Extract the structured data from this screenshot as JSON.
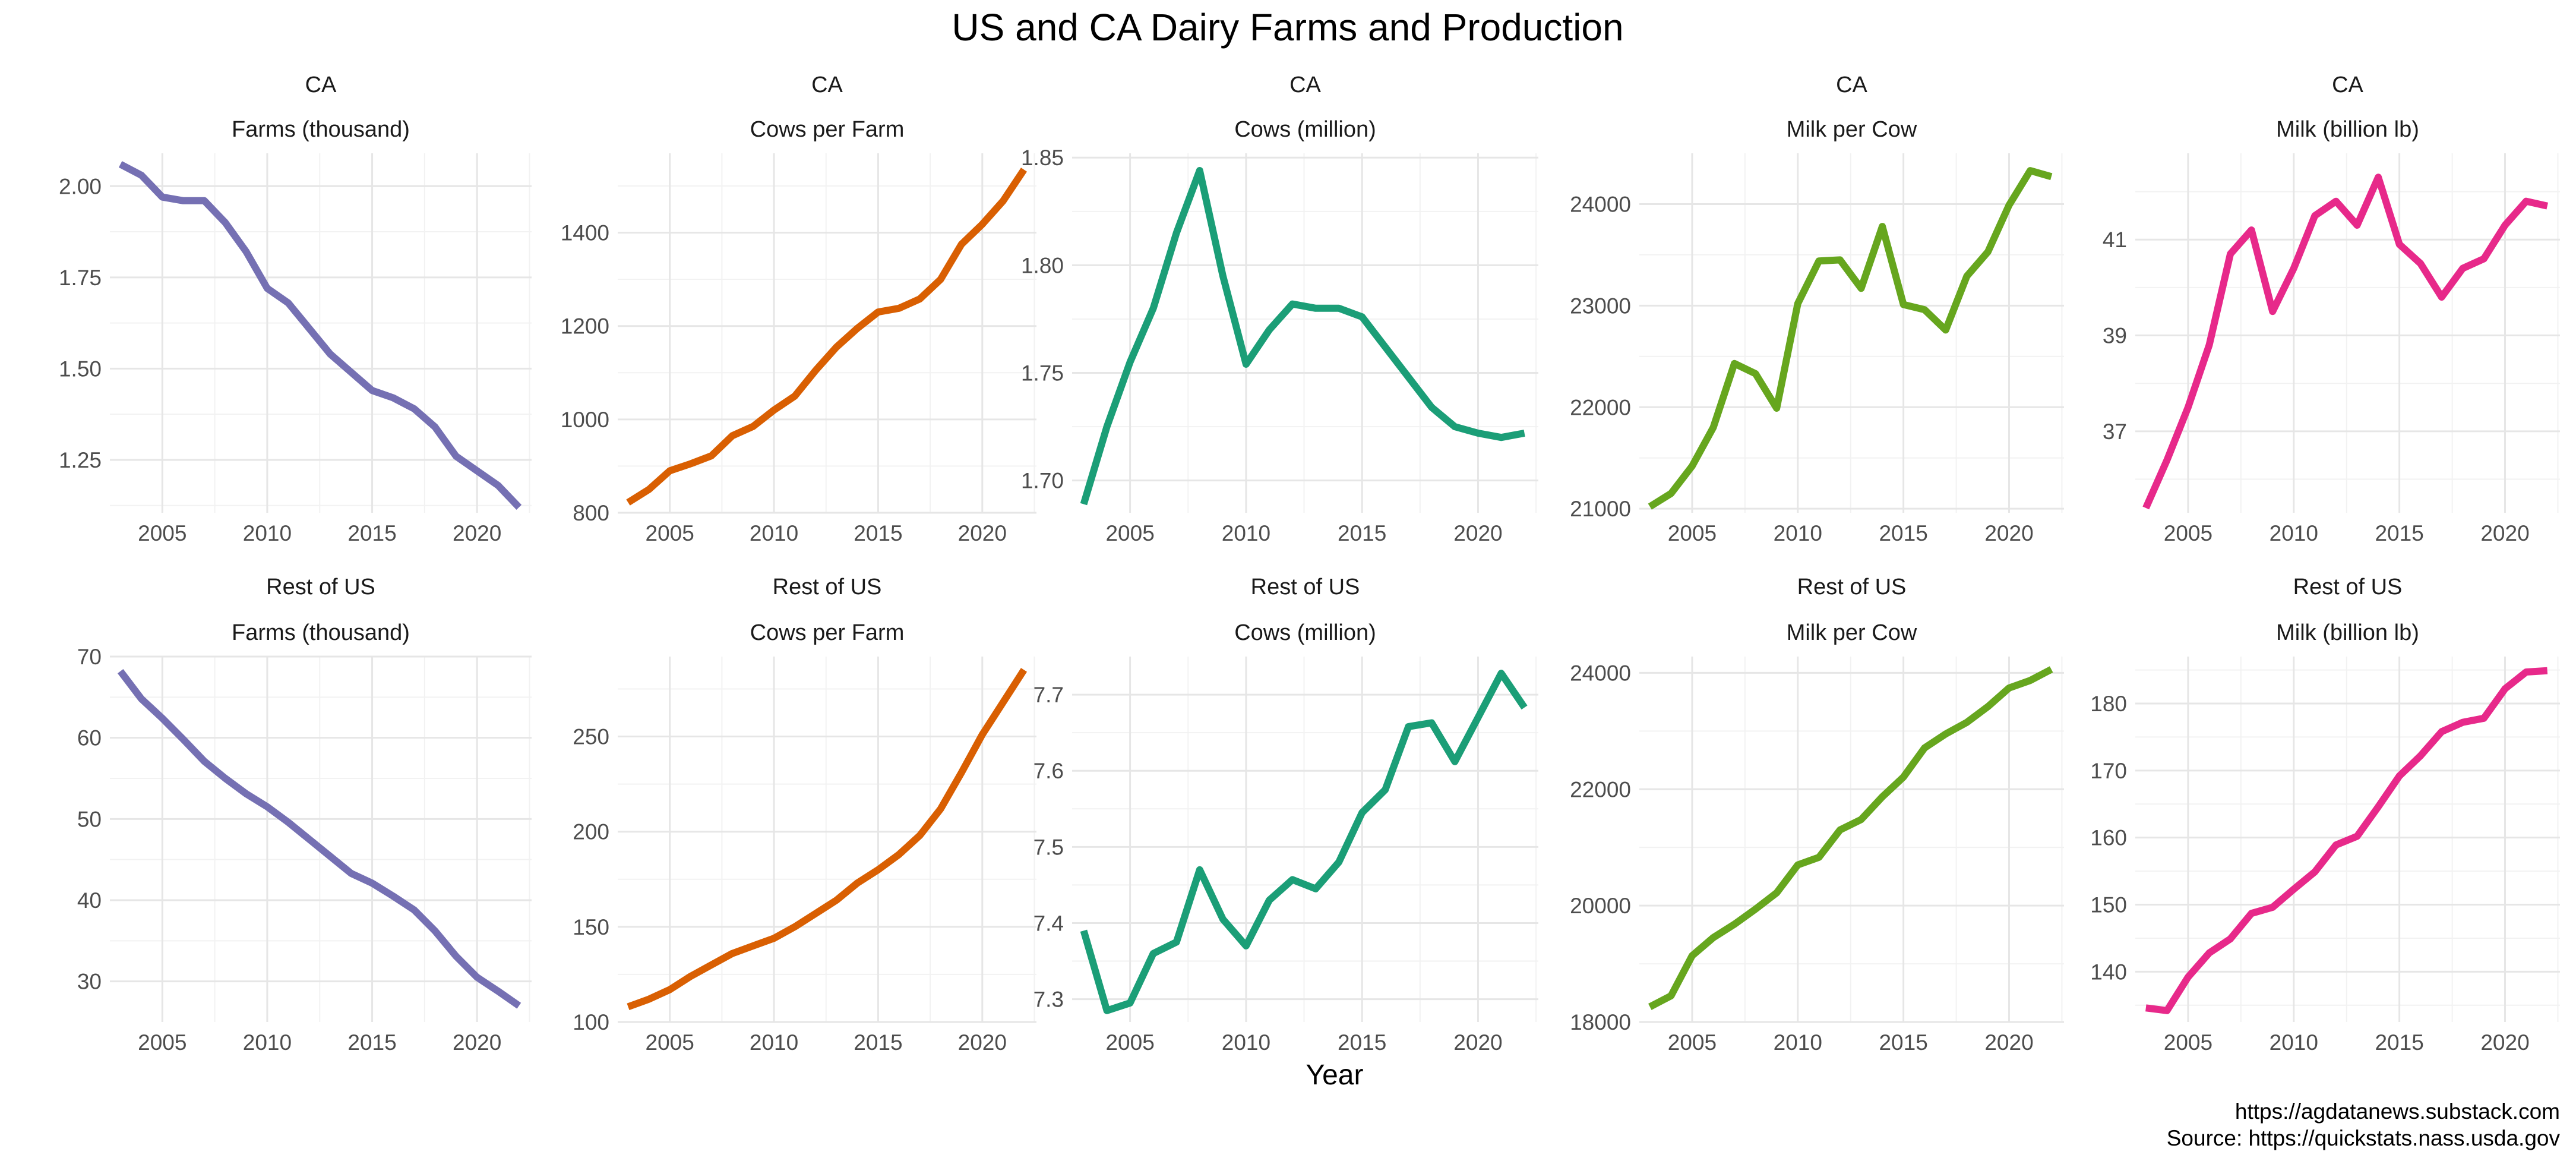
{
  "title": "US and CA Dairy Farms and Production",
  "x_axis_label": "Year",
  "caption": [
    "https://agdatanews.substack.com",
    "Source: https://quickstats.nass.usda.gov"
  ],
  "chart_data": [
    {
      "type": "line",
      "region": "CA",
      "title": "Farms (thousand)",
      "color": "#7570b3",
      "x": [
        2003,
        2004,
        2005,
        2006,
        2007,
        2008,
        2009,
        2010,
        2011,
        2012,
        2013,
        2014,
        2015,
        2016,
        2017,
        2018,
        2019,
        2020,
        2021,
        2022
      ],
      "values": [
        2.06,
        2.03,
        1.97,
        1.96,
        1.96,
        1.9,
        1.82,
        1.72,
        1.68,
        1.61,
        1.54,
        1.49,
        1.44,
        1.42,
        1.39,
        1.34,
        1.26,
        1.22,
        1.18,
        1.12
      ],
      "xlim": [
        2002.5,
        2022.6
      ],
      "xticks": [
        2005,
        2010,
        2015,
        2020
      ],
      "ylim": [
        1.105,
        2.09
      ],
      "yticks": [
        1.25,
        1.5,
        1.75,
        2.0
      ],
      "ytick_labels": [
        "1.25",
        "1.50",
        "1.75",
        "2.00"
      ]
    },
    {
      "type": "line",
      "region": "CA",
      "title": "Cows per Farm",
      "color": "#d95f02",
      "x": [
        2003,
        2004,
        2005,
        2006,
        2007,
        2008,
        2009,
        2010,
        2011,
        2012,
        2013,
        2014,
        2015,
        2016,
        2017,
        2018,
        2019,
        2020,
        2021,
        2022
      ],
      "values": [
        822,
        850,
        890,
        905,
        922,
        965,
        985,
        1020,
        1050,
        1105,
        1155,
        1195,
        1230,
        1238,
        1258,
        1300,
        1375,
        1418,
        1468,
        1535
      ],
      "xlim": [
        2002.5,
        2022.6
      ],
      "xticks": [
        2005,
        2010,
        2015,
        2020
      ],
      "ylim": [
        800,
        1570
      ],
      "yticks": [
        800,
        1000,
        1200,
        1400
      ],
      "ytick_labels": [
        "800",
        "1000",
        "1200",
        "1400"
      ]
    },
    {
      "type": "line",
      "region": "CA",
      "title": "Cows (million)",
      "color": "#1b9e77",
      "x": [
        2003,
        2004,
        2005,
        2006,
        2007,
        2008,
        2009,
        2010,
        2011,
        2012,
        2013,
        2014,
        2015,
        2016,
        2017,
        2018,
        2019,
        2020,
        2021,
        2022
      ],
      "values": [
        1.689,
        1.725,
        1.755,
        1.78,
        1.815,
        1.844,
        1.795,
        1.754,
        1.77,
        1.782,
        1.78,
        1.78,
        1.776,
        1.762,
        1.748,
        1.734,
        1.725,
        1.722,
        1.72,
        1.722
      ],
      "xlim": [
        2002.5,
        2022.6
      ],
      "xticks": [
        2005,
        2010,
        2015,
        2020
      ],
      "ylim": [
        1.685,
        1.852
      ],
      "yticks": [
        1.7,
        1.75,
        1.8,
        1.85
      ],
      "ytick_labels": [
        "1.70",
        "1.75",
        "1.80",
        "1.85"
      ]
    },
    {
      "type": "line",
      "region": "CA",
      "title": "Milk per Cow",
      "color": "#66a61e",
      "x": [
        2003,
        2004,
        2005,
        2006,
        2007,
        2008,
        2009,
        2010,
        2011,
        2012,
        2013,
        2014,
        2015,
        2016,
        2017,
        2018,
        2019,
        2020,
        2021,
        2022
      ],
      "values": [
        21020,
        21150,
        21420,
        21800,
        22430,
        22330,
        21990,
        23020,
        23440,
        23450,
        23170,
        23780,
        23010,
        22960,
        22760,
        23290,
        23530,
        23990,
        24330,
        24270
      ],
      "xlim": [
        2002.5,
        2022.6
      ],
      "xticks": [
        2005,
        2010,
        2015,
        2020
      ],
      "ylim": [
        20960,
        24500
      ],
      "yticks": [
        21000,
        22000,
        23000,
        24000
      ],
      "ytick_labels": [
        "21000",
        "22000",
        "23000",
        "24000"
      ]
    },
    {
      "type": "line",
      "region": "CA",
      "title": "Milk (billion lb)",
      "color": "#e7298a",
      "x": [
        2003,
        2004,
        2005,
        2006,
        2007,
        2008,
        2009,
        2010,
        2011,
        2012,
        2013,
        2014,
        2015,
        2016,
        2017,
        2018,
        2019,
        2020,
        2021,
        2022
      ],
      "values": [
        35.4,
        36.4,
        37.5,
        38.8,
        40.7,
        41.2,
        39.5,
        40.4,
        41.5,
        41.8,
        41.3,
        42.3,
        40.9,
        40.5,
        39.8,
        40.4,
        40.6,
        41.3,
        41.8,
        41.7
      ],
      "xlim": [
        2002.5,
        2022.6
      ],
      "xticks": [
        2005,
        2010,
        2015,
        2020
      ],
      "ylim": [
        35.3,
        42.8
      ],
      "yticks": [
        37,
        39,
        41
      ],
      "ytick_labels": [
        "37",
        "39",
        "41"
      ]
    },
    {
      "type": "line",
      "region": "Rest of US",
      "title": "Farms (thousand)",
      "color": "#7570b3",
      "x": [
        2003,
        2004,
        2005,
        2006,
        2007,
        2008,
        2009,
        2010,
        2011,
        2012,
        2013,
        2014,
        2015,
        2016,
        2017,
        2018,
        2019,
        2020,
        2021,
        2022
      ],
      "values": [
        68.2,
        64.8,
        62.4,
        59.8,
        57.1,
        55.0,
        53.1,
        51.5,
        49.6,
        47.5,
        45.4,
        43.3,
        42.1,
        40.5,
        38.8,
        36.2,
        33.1,
        30.5,
        28.8,
        27.0
      ],
      "xlim": [
        2002.5,
        2022.6
      ],
      "xticks": [
        2005,
        2010,
        2015,
        2020
      ],
      "ylim": [
        25,
        70
      ],
      "yticks": [
        30,
        40,
        50,
        60,
        70
      ],
      "ytick_labels": [
        "30",
        "40",
        "50",
        "60",
        "70"
      ]
    },
    {
      "type": "line",
      "region": "Rest of US",
      "title": "Cows per Farm",
      "color": "#d95f02",
      "x": [
        2003,
        2004,
        2005,
        2006,
        2007,
        2008,
        2009,
        2010,
        2011,
        2012,
        2013,
        2014,
        2015,
        2016,
        2017,
        2018,
        2019,
        2020,
        2021,
        2022
      ],
      "values": [
        108,
        112,
        117,
        124,
        130,
        136,
        140,
        144,
        150,
        157,
        164,
        173,
        180,
        188,
        198,
        212,
        231,
        251,
        268,
        285
      ],
      "xlim": [
        2002.5,
        2022.6
      ],
      "xticks": [
        2005,
        2010,
        2015,
        2020
      ],
      "ylim": [
        100,
        292
      ],
      "yticks": [
        100,
        150,
        200,
        250
      ],
      "ytick_labels": [
        "100",
        "150",
        "200",
        "250"
      ]
    },
    {
      "type": "line",
      "region": "Rest of US",
      "title": "Cows (million)",
      "color": "#1b9e77",
      "x": [
        2003,
        2004,
        2005,
        2006,
        2007,
        2008,
        2009,
        2010,
        2011,
        2012,
        2013,
        2014,
        2015,
        2016,
        2017,
        2018,
        2019,
        2020,
        2021,
        2022
      ],
      "values": [
        7.39,
        7.285,
        7.295,
        7.36,
        7.375,
        7.47,
        7.405,
        7.37,
        7.43,
        7.457,
        7.445,
        7.48,
        7.545,
        7.575,
        7.658,
        7.663,
        7.612,
        7.67,
        7.728,
        7.683
      ],
      "xlim": [
        2002.5,
        2022.6
      ],
      "xticks": [
        2005,
        2010,
        2015,
        2020
      ],
      "ylim": [
        7.27,
        7.75
      ],
      "yticks": [
        7.3,
        7.4,
        7.5,
        7.6,
        7.7
      ],
      "ytick_labels": [
        "7.3",
        "7.4",
        "7.5",
        "7.6",
        "7.7"
      ]
    },
    {
      "type": "line",
      "region": "Rest of US",
      "title": "Milk per Cow",
      "color": "#66a61e",
      "x": [
        2003,
        2004,
        2005,
        2006,
        2007,
        2008,
        2009,
        2010,
        2011,
        2012,
        2013,
        2014,
        2015,
        2016,
        2017,
        2018,
        2019,
        2020,
        2021,
        2022
      ],
      "values": [
        18260,
        18450,
        19140,
        19450,
        19680,
        19940,
        20220,
        20700,
        20830,
        21300,
        21480,
        21870,
        22210,
        22710,
        22950,
        23150,
        23420,
        23740,
        23870,
        24060
      ],
      "xlim": [
        2002.5,
        2022.6
      ],
      "xticks": [
        2005,
        2010,
        2015,
        2020
      ],
      "ylim": [
        18000,
        24280
      ],
      "yticks": [
        18000,
        20000,
        22000,
        24000
      ],
      "ytick_labels": [
        "18000",
        "20000",
        "22000",
        "24000"
      ]
    },
    {
      "type": "line",
      "region": "Rest of US",
      "title": "Milk (billion lb)",
      "color": "#e7298a",
      "x": [
        2003,
        2004,
        2005,
        2006,
        2007,
        2008,
        2009,
        2010,
        2011,
        2012,
        2013,
        2014,
        2015,
        2016,
        2017,
        2018,
        2019,
        2020,
        2021,
        2022
      ],
      "values": [
        134.6,
        134.2,
        139.2,
        142.8,
        144.9,
        148.7,
        149.6,
        152.3,
        154.9,
        158.9,
        160.2,
        164.6,
        169.2,
        172.2,
        175.8,
        177.2,
        177.8,
        182.2,
        184.7,
        184.9
      ],
      "xlim": [
        2002.5,
        2022.6
      ],
      "xticks": [
        2005,
        2010,
        2015,
        2020
      ],
      "ylim": [
        132.5,
        187
      ],
      "yticks": [
        140,
        150,
        160,
        170,
        180
      ],
      "ytick_labels": [
        "140",
        "150",
        "160",
        "170",
        "180"
      ]
    }
  ]
}
